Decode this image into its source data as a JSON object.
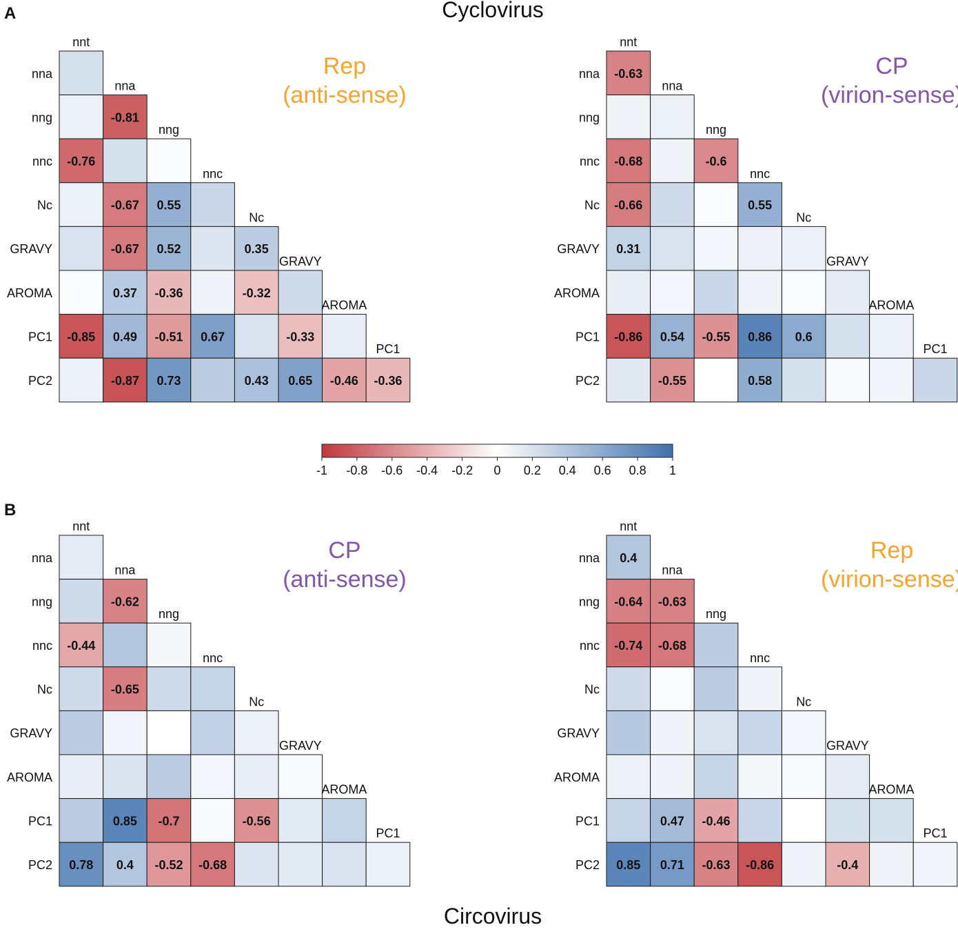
{
  "panel_labels": {
    "a": "A",
    "b": "B"
  },
  "titles": {
    "top": "Cyclovirus",
    "bottom": "Circovirus"
  },
  "colors": {
    "negative": "#c0393d",
    "positive": "#3f70ad",
    "neutral": "#ffffff",
    "orange_title": "#f5a331",
    "purple_title": "#8356ac"
  },
  "variables": [
    "nnt",
    "nna",
    "nng",
    "nnc",
    "Nc",
    "GRAVY",
    "AROMA",
    "PC1",
    "PC2"
  ],
  "colorbar": {
    "range": [
      -1,
      1
    ],
    "ticks": [
      "-1",
      "-0.8",
      "-0.6",
      "-0.4",
      "-0.2",
      "0",
      "0.2",
      "0.4",
      "0.6",
      "0.8",
      "1"
    ]
  },
  "chart_data": [
    {
      "type": "heatmap",
      "group": "Cyclovirus",
      "title_lines": [
        "Rep",
        "(anti-sense)"
      ],
      "title_color": "orange",
      "col_labels": [
        "nnt",
        "nna",
        "nng",
        "nnc",
        "Nc",
        "GRAVY",
        "AROMA",
        "PC1"
      ],
      "row_labels": [
        "nna",
        "nng",
        "nnc",
        "Nc",
        "GRAVY",
        "AROMA",
        "PC1",
        "PC2"
      ],
      "values": [
        [
          0.22
        ],
        [
          0.1,
          -0.81
        ],
        [
          -0.76,
          0.22,
          0.02
        ],
        [
          0.1,
          -0.67,
          0.55,
          0.28
        ],
        [
          0.2,
          -0.67,
          0.52,
          0.18,
          0.35
        ],
        [
          0.02,
          0.37,
          -0.36,
          0.08,
          -0.32,
          0.25
        ],
        [
          -0.85,
          0.49,
          -0.51,
          0.67,
          0.2,
          -0.33,
          0.12
        ],
        [
          0.1,
          -0.87,
          0.73,
          0.35,
          0.43,
          0.65,
          -0.46,
          -0.36
        ]
      ],
      "labels": [
        [
          ""
        ],
        [
          "",
          "-0.81"
        ],
        [
          "-0.76",
          "",
          ""
        ],
        [
          "",
          "-0.67",
          "0.55",
          ""
        ],
        [
          "",
          "-0.67",
          "0.52",
          "",
          "0.35"
        ],
        [
          "",
          "0.37",
          "-0.36",
          "",
          "-0.32",
          ""
        ],
        [
          "-0.85",
          "0.49",
          "-0.51",
          "0.67",
          "",
          "-0.33",
          ""
        ],
        [
          "",
          "-0.87",
          "0.73",
          "",
          "0.43",
          "0.65",
          "-0.46",
          "-0.36"
        ]
      ]
    },
    {
      "type": "heatmap",
      "group": "Cyclovirus",
      "title_lines": [
        "CP",
        "(virion-sense)"
      ],
      "title_color": "purple",
      "col_labels": [
        "nnt",
        "nna",
        "nng",
        "nnc",
        "Nc",
        "GRAVY",
        "AROMA",
        "PC1"
      ],
      "row_labels": [
        "nna",
        "nng",
        "nnc",
        "Nc",
        "GRAVY",
        "AROMA",
        "PC1",
        "PC2"
      ],
      "values": [
        [
          -0.63
        ],
        [
          0.08,
          0.1
        ],
        [
          -0.68,
          0.08,
          -0.6
        ],
        [
          -0.66,
          0.25,
          0.02,
          0.55
        ],
        [
          0.31,
          0.2,
          0.06,
          0.09,
          0.1
        ],
        [
          0.12,
          0.06,
          0.28,
          0.08,
          0.02,
          0.14
        ],
        [
          -0.86,
          0.54,
          -0.55,
          0.86,
          0.6,
          0.22,
          0.1
        ],
        [
          0.16,
          -0.55,
          0.0,
          0.58,
          0.22,
          0.04,
          0.07,
          0.28
        ]
      ],
      "labels": [
        [
          "-0.63"
        ],
        [
          "",
          ""
        ],
        [
          "-0.68",
          "",
          "-0.6"
        ],
        [
          "-0.66",
          "",
          "",
          "0.55"
        ],
        [
          "0.31",
          "",
          "",
          "",
          ""
        ],
        [
          "",
          "",
          "",
          "",
          "",
          ""
        ],
        [
          "-0.86",
          "0.54",
          "-0.55",
          "0.86",
          "0.6",
          "",
          ""
        ],
        [
          "",
          "-0.55",
          "",
          "0.58",
          "",
          "",
          "",
          ""
        ]
      ]
    },
    {
      "type": "heatmap",
      "group": "Circovirus",
      "title_lines": [
        "CP",
        "(anti-sense)"
      ],
      "title_color": "purple",
      "col_labels": [
        "nnt",
        "nna",
        "nng",
        "nnc",
        "Nc",
        "GRAVY",
        "AROMA",
        "PC1"
      ],
      "row_labels": [
        "nna",
        "nng",
        "nnc",
        "Nc",
        "GRAVY",
        "AROMA",
        "PC1",
        "PC2"
      ],
      "values": [
        [
          0.14
        ],
        [
          0.25,
          -0.62
        ],
        [
          -0.44,
          0.4,
          0.05
        ],
        [
          0.25,
          -0.65,
          0.25,
          0.3
        ],
        [
          0.35,
          0.07,
          0.0,
          0.32,
          0.1
        ],
        [
          0.12,
          0.2,
          0.35,
          0.06,
          0.12,
          0.04
        ],
        [
          0.35,
          0.85,
          -0.7,
          0.04,
          -0.56,
          0.15,
          0.3
        ],
        [
          0.78,
          0.4,
          -0.52,
          -0.68,
          0.18,
          0.15,
          0.2,
          0.1
        ]
      ],
      "labels": [
        [
          ""
        ],
        [
          "",
          "-0.62"
        ],
        [
          "-0.44",
          "",
          ""
        ],
        [
          "",
          "-0.65",
          "",
          ""
        ],
        [
          "",
          "",
          "",
          "",
          ""
        ],
        [
          "",
          "",
          "",
          "",
          "",
          ""
        ],
        [
          "",
          "0.85",
          "-0.7",
          "",
          "-0.56",
          "",
          ""
        ],
        [
          "0.78",
          "0.4",
          "-0.52",
          "-0.68",
          "",
          "",
          "",
          ""
        ]
      ]
    },
    {
      "type": "heatmap",
      "group": "Circovirus",
      "title_lines": [
        "Rep",
        "(virion-sense)"
      ],
      "title_color": "orange",
      "col_labels": [
        "nnt",
        "nna",
        "nng",
        "nnc",
        "Nc",
        "GRAVY",
        "AROMA",
        "PC1"
      ],
      "row_labels": [
        "nna",
        "nng",
        "nnc",
        "Nc",
        "GRAVY",
        "AROMA",
        "PC1",
        "PC2"
      ],
      "values": [
        [
          0.4
        ],
        [
          -0.64,
          -0.63
        ],
        [
          -0.74,
          -0.68,
          0.35
        ],
        [
          0.25,
          0.02,
          0.35,
          0.08
        ],
        [
          0.38,
          0.08,
          0.2,
          0.28,
          0.06
        ],
        [
          0.1,
          0.08,
          0.3,
          0.05,
          0.04,
          0.14
        ],
        [
          0.3,
          0.47,
          -0.46,
          0.28,
          0.0,
          0.22,
          0.22
        ],
        [
          0.85,
          0.71,
          -0.63,
          -0.86,
          0.08,
          -0.4,
          0.08,
          0.07
        ]
      ],
      "labels": [
        [
          "0.4"
        ],
        [
          "-0.64",
          "-0.63"
        ],
        [
          "-0.74",
          "-0.68",
          ""
        ],
        [
          "",
          "",
          "",
          ""
        ],
        [
          "",
          "",
          "",
          "",
          ""
        ],
        [
          "",
          "",
          "",
          "",
          "",
          ""
        ],
        [
          "",
          "0.47",
          "-0.46",
          "",
          "",
          "",
          ""
        ],
        [
          "0.85",
          "0.71",
          "-0.63",
          "-0.86",
          "",
          "-0.4",
          "",
          ""
        ]
      ]
    }
  ]
}
